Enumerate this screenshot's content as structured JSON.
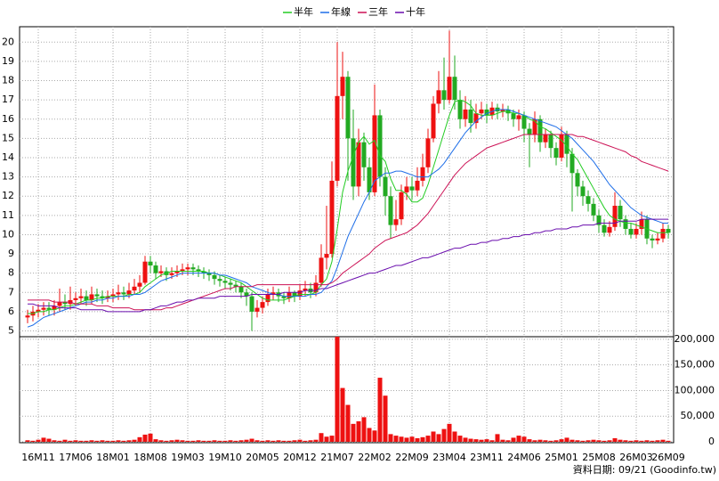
{
  "chart_data": {
    "type": "candlestick",
    "categories": [
      null,
      null,
      "16M11",
      null,
      null,
      null,
      null,
      null,
      null,
      "17M06",
      null,
      null,
      null,
      null,
      null,
      null,
      "18M01",
      null,
      null,
      null,
      null,
      null,
      null,
      "18M08",
      null,
      null,
      null,
      null,
      null,
      null,
      "19M03",
      null,
      null,
      null,
      null,
      null,
      null,
      "19M10",
      null,
      null,
      null,
      null,
      null,
      null,
      "20M05",
      null,
      null,
      null,
      null,
      null,
      null,
      "20M12",
      null,
      null,
      null,
      null,
      null,
      null,
      "21M07",
      null,
      null,
      null,
      null,
      null,
      null,
      "22M02",
      null,
      null,
      null,
      null,
      null,
      null,
      "22M09",
      null,
      null,
      null,
      null,
      null,
      null,
      "23M04",
      null,
      null,
      null,
      null,
      null,
      null,
      "23M11",
      null,
      null,
      null,
      null,
      null,
      null,
      "24M06",
      null,
      null,
      null,
      null,
      null,
      null,
      "25M01",
      null,
      null,
      null,
      null,
      null,
      null,
      "25M08",
      null,
      null,
      null,
      null,
      null,
      null,
      "26M03",
      null,
      null,
      null,
      null,
      null,
      "26M09"
    ],
    "open": [
      5.7,
      5.8,
      6.0,
      6.1,
      6.2,
      6.1,
      6.3,
      6.5,
      6.4,
      6.6,
      6.7,
      6.8,
      6.6,
      6.9,
      6.8,
      6.7,
      6.8,
      6.9,
      7.0,
      6.9,
      7.1,
      7.3,
      7.5,
      8.6,
      8.4,
      8.0,
      8.1,
      7.9,
      8.0,
      8.1,
      8.2,
      8.3,
      8.2,
      8.1,
      8.0,
      7.9,
      7.7,
      7.6,
      7.5,
      7.4,
      7.3,
      7.0,
      6.8,
      6.0,
      6.2,
      6.5,
      6.9,
      7.0,
      6.8,
      6.7,
      7.0,
      6.8,
      7.1,
      7.2,
      7.0,
      7.5,
      8.8,
      9.0,
      12.8,
      17.2,
      18.2,
      15.0,
      12.5,
      14.8,
      13.5,
      12.2,
      16.2,
      13.0,
      12.0,
      10.5,
      10.8,
      12.2,
      12.5,
      12.3,
      12.8,
      13.5,
      15.0,
      16.8,
      17.5,
      17.0,
      18.2,
      17.0,
      16.0,
      16.5,
      15.8,
      16.3,
      16.5,
      16.2,
      16.6,
      16.4,
      16.5,
      16.3,
      16.0,
      16.2,
      15.5,
      15.2,
      16.0,
      14.8,
      15.2,
      14.5,
      14.0,
      15.2,
      14.2,
      13.2,
      12.5,
      12.0,
      11.6,
      11.0,
      10.5,
      10.1,
      10.4,
      11.5,
      10.8,
      10.3,
      10.0,
      10.3,
      10.8,
      9.8,
      9.7,
      9.8,
      10.3
    ],
    "high": [
      6.1,
      6.3,
      6.4,
      6.5,
      6.5,
      6.6,
      7.2,
      6.9,
      7.3,
      7.0,
      7.2,
      7.1,
      7.3,
      7.2,
      7.1,
      7.1,
      7.2,
      7.4,
      7.3,
      7.5,
      7.7,
      7.9,
      8.9,
      8.9,
      8.6,
      8.4,
      8.3,
      8.3,
      8.4,
      8.5,
      8.5,
      8.5,
      8.4,
      8.3,
      8.2,
      8.1,
      7.9,
      7.8,
      7.7,
      7.6,
      7.5,
      7.2,
      7.0,
      6.6,
      6.8,
      7.2,
      7.3,
      7.2,
      7.0,
      7.3,
      7.1,
      7.4,
      7.6,
      7.5,
      7.9,
      9.5,
      11.5,
      13.8,
      20.0,
      19.5,
      18.5,
      16.5,
      15.5,
      15.3,
      14.0,
      17.8,
      16.5,
      13.5,
      12.5,
      11.8,
      12.6,
      13.0,
      13.0,
      13.5,
      14.2,
      15.5,
      17.2,
      18.5,
      19.2,
      20.6,
      19.3,
      17.5,
      17.2,
      17.0,
      16.8,
      16.9,
      16.8,
      16.9,
      16.8,
      16.8,
      16.7,
      16.5,
      16.5,
      16.4,
      15.8,
      16.4,
      16.2,
      15.5,
      15.4,
      14.8,
      15.6,
      15.4,
      14.5,
      13.4,
      12.8,
      12.3,
      11.9,
      11.3,
      10.8,
      10.7,
      12.2,
      11.8,
      11.0,
      10.6,
      10.6,
      11.2,
      11.0,
      10.0,
      10.1,
      10.6,
      10.5
    ],
    "low": [
      5.4,
      5.5,
      5.7,
      5.8,
      5.8,
      5.8,
      6.0,
      6.1,
      6.1,
      6.3,
      6.4,
      6.3,
      6.4,
      6.5,
      6.4,
      6.5,
      6.5,
      6.6,
      6.6,
      6.7,
      6.9,
      7.0,
      7.4,
      8.0,
      7.7,
      7.8,
      7.6,
      7.7,
      7.8,
      7.9,
      7.9,
      7.9,
      7.8,
      7.7,
      7.6,
      7.4,
      7.3,
      7.2,
      7.1,
      7.0,
      6.7,
      6.3,
      5.0,
      5.7,
      5.9,
      6.3,
      6.6,
      6.5,
      6.4,
      6.5,
      6.5,
      6.6,
      6.8,
      6.7,
      6.8,
      7.3,
      8.2,
      8.8,
      12.5,
      16.0,
      12.8,
      11.8,
      12.0,
      12.8,
      11.8,
      12.0,
      12.5,
      11.0,
      9.8,
      10.2,
      10.5,
      11.8,
      11.8,
      12.0,
      12.5,
      13.2,
      14.8,
      16.3,
      16.5,
      16.8,
      16.5,
      15.5,
      15.6,
      15.3,
      15.5,
      16.0,
      15.8,
      16.0,
      16.0,
      16.1,
      15.9,
      15.6,
      15.4,
      14.8,
      13.5,
      14.8,
      14.3,
      14.5,
      14.0,
      13.6,
      13.8,
      13.5,
      11.2,
      12.0,
      11.5,
      11.2,
      10.7,
      10.1,
      9.9,
      9.9,
      10.2,
      10.4,
      10.0,
      9.8,
      9.8,
      10.0,
      9.5,
      9.3,
      9.5,
      9.6,
      9.8
    ],
    "close": [
      5.8,
      6.0,
      6.1,
      6.2,
      6.1,
      6.3,
      6.5,
      6.4,
      6.6,
      6.7,
      6.8,
      6.6,
      6.9,
      6.8,
      6.7,
      6.8,
      6.9,
      7.0,
      6.9,
      7.1,
      7.3,
      7.5,
      8.6,
      8.4,
      8.0,
      8.1,
      7.9,
      8.0,
      8.1,
      8.2,
      8.3,
      8.2,
      8.1,
      8.0,
      7.9,
      7.7,
      7.6,
      7.5,
      7.4,
      7.3,
      7.0,
      6.8,
      6.0,
      6.2,
      6.5,
      6.9,
      7.0,
      6.8,
      6.7,
      7.0,
      6.8,
      7.1,
      7.2,
      7.0,
      7.5,
      8.8,
      9.0,
      12.8,
      17.2,
      18.2,
      15.0,
      12.5,
      14.8,
      13.5,
      12.2,
      16.2,
      13.0,
      12.0,
      10.5,
      10.8,
      12.2,
      12.5,
      12.3,
      12.8,
      13.5,
      15.0,
      16.8,
      17.5,
      17.0,
      18.2,
      17.0,
      16.0,
      16.5,
      15.8,
      16.3,
      16.5,
      16.2,
      16.6,
      16.4,
      16.5,
      16.3,
      16.0,
      16.2,
      15.5,
      15.2,
      16.0,
      14.8,
      15.2,
      14.5,
      14.0,
      15.2,
      14.2,
      13.2,
      12.5,
      12.0,
      11.6,
      11.0,
      10.5,
      10.1,
      10.4,
      11.5,
      10.8,
      10.3,
      10.0,
      10.3,
      10.8,
      9.8,
      9.7,
      9.8,
      10.3,
      10.1
    ],
    "up_color": "#ee1111",
    "down_color": "#22aa22",
    "series": [
      {
        "name": "半年",
        "color": "#22cc22",
        "values": [
          5.9,
          5.9,
          6.0,
          6.0,
          6.1,
          6.1,
          6.2,
          6.3,
          6.3,
          6.4,
          6.5,
          6.6,
          6.6,
          6.7,
          6.7,
          6.8,
          6.8,
          6.8,
          6.8,
          6.9,
          6.9,
          7.0,
          7.3,
          7.5,
          7.7,
          7.9,
          8.0,
          8.1,
          8.1,
          8.1,
          8.1,
          8.1,
          8.1,
          8.1,
          8.0,
          8.0,
          7.9,
          7.8,
          7.7,
          7.6,
          7.5,
          7.3,
          7.1,
          6.9,
          6.7,
          6.6,
          6.6,
          6.6,
          6.6,
          6.7,
          6.8,
          6.9,
          6.9,
          6.9,
          7.0,
          7.4,
          7.7,
          8.6,
          10.3,
          12.2,
          13.3,
          14.1,
          14.8,
          15.1,
          14.7,
          14.9,
          14.1,
          13.8,
          12.9,
          12.3,
          12.3,
          12.1,
          11.7,
          11.7,
          11.9,
          12.6,
          13.5,
          14.4,
          15.3,
          16.2,
          16.9,
          17.0,
          16.9,
          16.7,
          16.3,
          16.2,
          16.2,
          16.2,
          16.3,
          16.4,
          16.4,
          16.3,
          16.3,
          16.2,
          16.0,
          15.9,
          15.6,
          15.5,
          15.3,
          15.1,
          14.9,
          14.6,
          14.2,
          13.9,
          13.4,
          12.9,
          12.4,
          11.9,
          11.4,
          11.0,
          10.8,
          10.7,
          10.6,
          10.6,
          10.5,
          10.4,
          10.3,
          10.2,
          10.1,
          10.1,
          10.1
        ]
      },
      {
        "name": "年線",
        "color": "#1e6ee8",
        "values": [
          5.2,
          5.3,
          5.5,
          5.7,
          5.8,
          5.9,
          6.0,
          6.1,
          6.2,
          6.3,
          6.4,
          6.5,
          6.5,
          6.6,
          6.6,
          6.7,
          6.7,
          6.8,
          6.8,
          6.8,
          6.9,
          6.9,
          7.0,
          7.2,
          7.4,
          7.6,
          7.7,
          7.8,
          7.9,
          8.0,
          8.0,
          8.0,
          8.0,
          8.0,
          8.0,
          8.0,
          7.9,
          7.9,
          7.8,
          7.7,
          7.6,
          7.5,
          7.3,
          7.2,
          7.1,
          7.0,
          6.9,
          6.9,
          6.8,
          6.8,
          6.8,
          6.8,
          6.8,
          6.9,
          6.9,
          7.0,
          7.3,
          7.6,
          8.3,
          9.1,
          9.9,
          10.5,
          11.1,
          11.7,
          12.2,
          12.8,
          13.0,
          13.2,
          13.2,
          13.3,
          13.3,
          13.2,
          13.1,
          13.0,
          13.0,
          13.0,
          13.2,
          13.4,
          13.7,
          14.1,
          14.5,
          14.9,
          15.3,
          15.6,
          15.9,
          16.1,
          16.3,
          16.4,
          16.5,
          16.5,
          16.5,
          16.4,
          16.3,
          16.2,
          16.1,
          16.0,
          15.9,
          15.8,
          15.7,
          15.6,
          15.4,
          15.2,
          15.0,
          14.7,
          14.4,
          14.1,
          13.8,
          13.4,
          13.0,
          12.6,
          12.3,
          12.0,
          11.7,
          11.4,
          11.2,
          11.0,
          10.9,
          10.8,
          10.7,
          10.6,
          10.6
        ]
      },
      {
        "name": "三年",
        "color": "#cc1155",
        "values": [
          6.6,
          6.6,
          6.6,
          6.6,
          6.6,
          6.5,
          6.5,
          6.5,
          6.5,
          6.4,
          6.4,
          6.4,
          6.4,
          6.3,
          6.3,
          6.3,
          6.2,
          6.2,
          6.2,
          6.2,
          6.1,
          6.1,
          6.1,
          6.1,
          6.1,
          6.1,
          6.2,
          6.2,
          6.3,
          6.4,
          6.5,
          6.6,
          6.7,
          6.8,
          6.9,
          7.0,
          7.1,
          7.2,
          7.2,
          7.3,
          7.3,
          7.3,
          7.3,
          7.4,
          7.4,
          7.4,
          7.4,
          7.4,
          7.4,
          7.4,
          7.4,
          7.4,
          7.4,
          7.4,
          7.4,
          7.4,
          7.4,
          7.5,
          7.7,
          8.0,
          8.2,
          8.4,
          8.6,
          8.8,
          9.0,
          9.3,
          9.5,
          9.7,
          9.8,
          9.9,
          10.0,
          10.1,
          10.3,
          10.5,
          10.8,
          11.1,
          11.5,
          11.9,
          12.3,
          12.7,
          13.1,
          13.4,
          13.7,
          13.9,
          14.1,
          14.3,
          14.5,
          14.6,
          14.7,
          14.8,
          14.9,
          15.0,
          15.1,
          15.2,
          15.2,
          15.2,
          15.2,
          15.2,
          15.2,
          15.2,
          15.2,
          15.2,
          15.2,
          15.1,
          15.1,
          15.0,
          14.9,
          14.8,
          14.7,
          14.6,
          14.5,
          14.4,
          14.3,
          14.1,
          14.0,
          13.8,
          13.7,
          13.6,
          13.5,
          13.4,
          13.3
        ]
      },
      {
        "name": "十年",
        "color": "#6a0dad",
        "values": [
          6.4,
          6.4,
          6.3,
          6.3,
          6.3,
          6.3,
          6.2,
          6.2,
          6.2,
          6.2,
          6.1,
          6.1,
          6.1,
          6.1,
          6.1,
          6.0,
          6.0,
          6.0,
          6.0,
          6.0,
          6.0,
          6.0,
          6.1,
          6.1,
          6.2,
          6.3,
          6.3,
          6.4,
          6.5,
          6.5,
          6.6,
          6.6,
          6.7,
          6.7,
          6.7,
          6.7,
          6.8,
          6.8,
          6.8,
          6.8,
          6.8,
          6.8,
          6.9,
          6.9,
          6.9,
          6.9,
          6.9,
          6.9,
          7.0,
          7.0,
          7.0,
          7.0,
          7.1,
          7.1,
          7.1,
          7.2,
          7.2,
          7.3,
          7.4,
          7.5,
          7.6,
          7.7,
          7.8,
          7.9,
          8.0,
          8.0,
          8.1,
          8.2,
          8.3,
          8.4,
          8.4,
          8.5,
          8.6,
          8.7,
          8.8,
          8.8,
          8.9,
          9.0,
          9.1,
          9.2,
          9.3,
          9.3,
          9.4,
          9.5,
          9.5,
          9.6,
          9.6,
          9.7,
          9.7,
          9.8,
          9.8,
          9.9,
          9.9,
          10.0,
          10.0,
          10.1,
          10.1,
          10.2,
          10.2,
          10.3,
          10.3,
          10.3,
          10.4,
          10.4,
          10.5,
          10.5,
          10.5,
          10.6,
          10.6,
          10.6,
          10.6,
          10.7,
          10.7,
          10.7,
          10.7,
          10.8,
          10.8,
          10.8,
          10.8,
          10.8,
          10.8
        ]
      }
    ],
    "ylim": [
      4.7,
      20.8
    ],
    "yticks": [
      5,
      6,
      7,
      8,
      9,
      10,
      11,
      12,
      13,
      14,
      15,
      16,
      17,
      18,
      19,
      20
    ],
    "volume": {
      "color": "#ee1111",
      "values": [
        3000,
        2000,
        4000,
        8000,
        6000,
        3000,
        2000,
        4000,
        2000,
        3000,
        2000,
        2000,
        3000,
        2000,
        3000,
        2000,
        2000,
        3000,
        2000,
        3000,
        4000,
        9000,
        14000,
        16000,
        5000,
        3000,
        2000,
        3000,
        4000,
        3000,
        2000,
        2000,
        3000,
        2000,
        2000,
        3000,
        2000,
        2000,
        3000,
        2000,
        3000,
        4000,
        6000,
        3000,
        2000,
        3000,
        2000,
        3000,
        2000,
        2000,
        3000,
        4000,
        2000,
        3000,
        4000,
        17000,
        10000,
        12000,
        205000,
        105000,
        72000,
        35000,
        40000,
        48000,
        27000,
        22000,
        125000,
        90000,
        15000,
        12000,
        10000,
        8000,
        10000,
        7000,
        9000,
        12000,
        20000,
        15000,
        25000,
        35000,
        20000,
        12000,
        8000,
        6000,
        5000,
        4000,
        5000,
        3000,
        15000,
        4000,
        3000,
        8000,
        12000,
        10000,
        5000,
        3000,
        4000,
        3000,
        2000,
        3000,
        5000,
        8000,
        4000,
        3000,
        2000,
        3000,
        4000,
        3000,
        2000,
        3000,
        7000,
        4000,
        3000,
        2000,
        3000,
        2000,
        3000,
        2000,
        3000,
        4000,
        2000
      ],
      "ylim": [
        0,
        205000
      ],
      "yticks": [
        0,
        {
          "value": 50000,
          "label": "50,000"
        },
        {
          "value": 100000,
          "label": "100,000"
        },
        {
          "value": 150000,
          "label": "150,000"
        },
        {
          "value": 200000,
          "label": "200,000"
        }
      ]
    },
    "grid": true,
    "footnote": "資料日期: 09/21  (Goodinfo.tw)"
  }
}
